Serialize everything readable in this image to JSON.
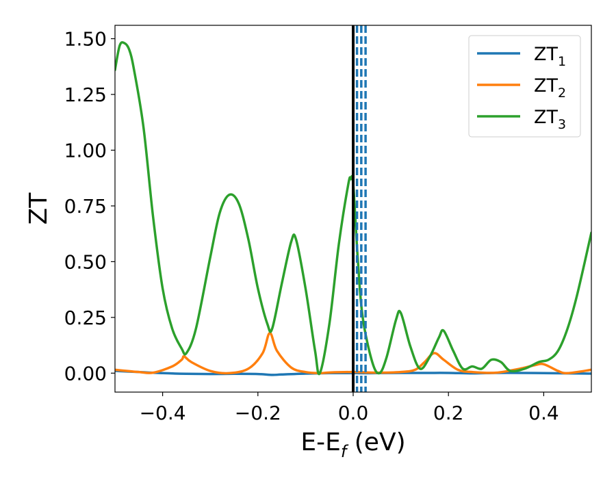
{
  "chart_data": {
    "type": "line",
    "xlabel": {
      "main": "E-E",
      "sub": "f",
      "rest": " (eV)"
    },
    "ylabel": "ZT",
    "xlim": [
      -0.5,
      0.5
    ],
    "ylim": [
      -0.085,
      1.56
    ],
    "xticks": [
      -0.4,
      -0.2,
      0.0,
      0.2,
      0.4
    ],
    "xtick_labels": [
      "−0.4",
      "−0.2",
      "0.0",
      "0.2",
      "0.4"
    ],
    "yticks": [
      0.0,
      0.25,
      0.5,
      0.75,
      1.0,
      1.25,
      1.5
    ],
    "ytick_labels": [
      "0.00",
      "0.25",
      "0.50",
      "0.75",
      "1.00",
      "1.25",
      "1.50"
    ],
    "grid": false,
    "legend_position": "top-right",
    "vertical_lines": [
      {
        "x": 0.0,
        "style": "solid",
        "color": "#000000"
      },
      {
        "x": 0.008,
        "style": "dashed",
        "color": "#1f77b4"
      },
      {
        "x": 0.017,
        "style": "dashed",
        "color": "#1f77b4"
      },
      {
        "x": 0.026,
        "style": "dashed",
        "color": "#1f77b4"
      }
    ],
    "series": [
      {
        "name": "ZT",
        "sub": "1",
        "color": "#1f77b4",
        "x": [
          -0.5,
          -0.45,
          -0.4,
          -0.35,
          -0.3,
          -0.25,
          -0.2,
          -0.17,
          -0.15,
          -0.1,
          -0.05,
          0.0,
          0.05,
          0.1,
          0.15,
          0.2,
          0.25,
          0.3,
          0.35,
          0.4,
          0.45,
          0.5
        ],
        "y": [
          0.01,
          0.005,
          0.0,
          -0.003,
          -0.004,
          -0.003,
          -0.004,
          -0.008,
          -0.006,
          -0.002,
          0.0,
          0.0,
          0.0,
          0.001,
          0.001,
          0.001,
          -0.001,
          0.001,
          0.001,
          0.0,
          -0.001,
          -0.002
        ]
      },
      {
        "name": "ZT",
        "sub": "2",
        "color": "#ff7f0e",
        "x": [
          -0.5,
          -0.45,
          -0.42,
          -0.38,
          -0.36,
          -0.355,
          -0.34,
          -0.3,
          -0.26,
          -0.22,
          -0.19,
          -0.175,
          -0.16,
          -0.13,
          -0.1,
          -0.07,
          -0.05,
          0.0,
          0.05,
          0.1,
          0.13,
          0.15,
          0.17,
          0.19,
          0.22,
          0.25,
          0.3,
          0.35,
          0.38,
          0.4,
          0.43,
          0.45,
          0.5
        ],
        "y": [
          0.015,
          0.005,
          0.002,
          0.03,
          0.06,
          0.075,
          0.05,
          0.01,
          0.0,
          0.02,
          0.09,
          0.18,
          0.1,
          0.025,
          0.005,
          0.0,
          0.003,
          0.005,
          0.002,
          0.005,
          0.015,
          0.05,
          0.09,
          0.06,
          0.015,
          0.005,
          0.002,
          0.02,
          0.035,
          0.04,
          0.01,
          0.0,
          0.015
        ]
      },
      {
        "name": "ZT",
        "sub": "3",
        "color": "#2ca02c",
        "x": [
          -0.5,
          -0.49,
          -0.48,
          -0.47,
          -0.46,
          -0.44,
          -0.42,
          -0.4,
          -0.38,
          -0.36,
          -0.35,
          -0.33,
          -0.3,
          -0.28,
          -0.26,
          -0.24,
          -0.22,
          -0.2,
          -0.18,
          -0.17,
          -0.15,
          -0.13,
          -0.12,
          -0.1,
          -0.08,
          -0.07,
          -0.05,
          -0.03,
          -0.01,
          -0.005,
          0.0,
          0.01,
          0.02,
          0.04,
          0.055,
          0.07,
          0.09,
          0.1,
          0.12,
          0.14,
          0.16,
          0.18,
          0.19,
          0.21,
          0.23,
          0.25,
          0.27,
          0.29,
          0.31,
          0.33,
          0.36,
          0.39,
          0.41,
          0.43,
          0.45,
          0.47,
          0.5
        ],
        "y": [
          1.36,
          1.47,
          1.48,
          1.45,
          1.36,
          1.1,
          0.7,
          0.38,
          0.2,
          0.11,
          0.09,
          0.2,
          0.52,
          0.72,
          0.8,
          0.76,
          0.6,
          0.38,
          0.22,
          0.2,
          0.4,
          0.59,
          0.6,
          0.38,
          0.1,
          0.0,
          0.22,
          0.58,
          0.85,
          0.87,
          0.85,
          0.5,
          0.25,
          0.05,
          0.0,
          0.07,
          0.24,
          0.27,
          0.12,
          0.02,
          0.07,
          0.16,
          0.19,
          0.1,
          0.02,
          0.03,
          0.02,
          0.06,
          0.05,
          0.01,
          0.02,
          0.05,
          0.06,
          0.1,
          0.2,
          0.35,
          0.63
        ]
      }
    ]
  }
}
